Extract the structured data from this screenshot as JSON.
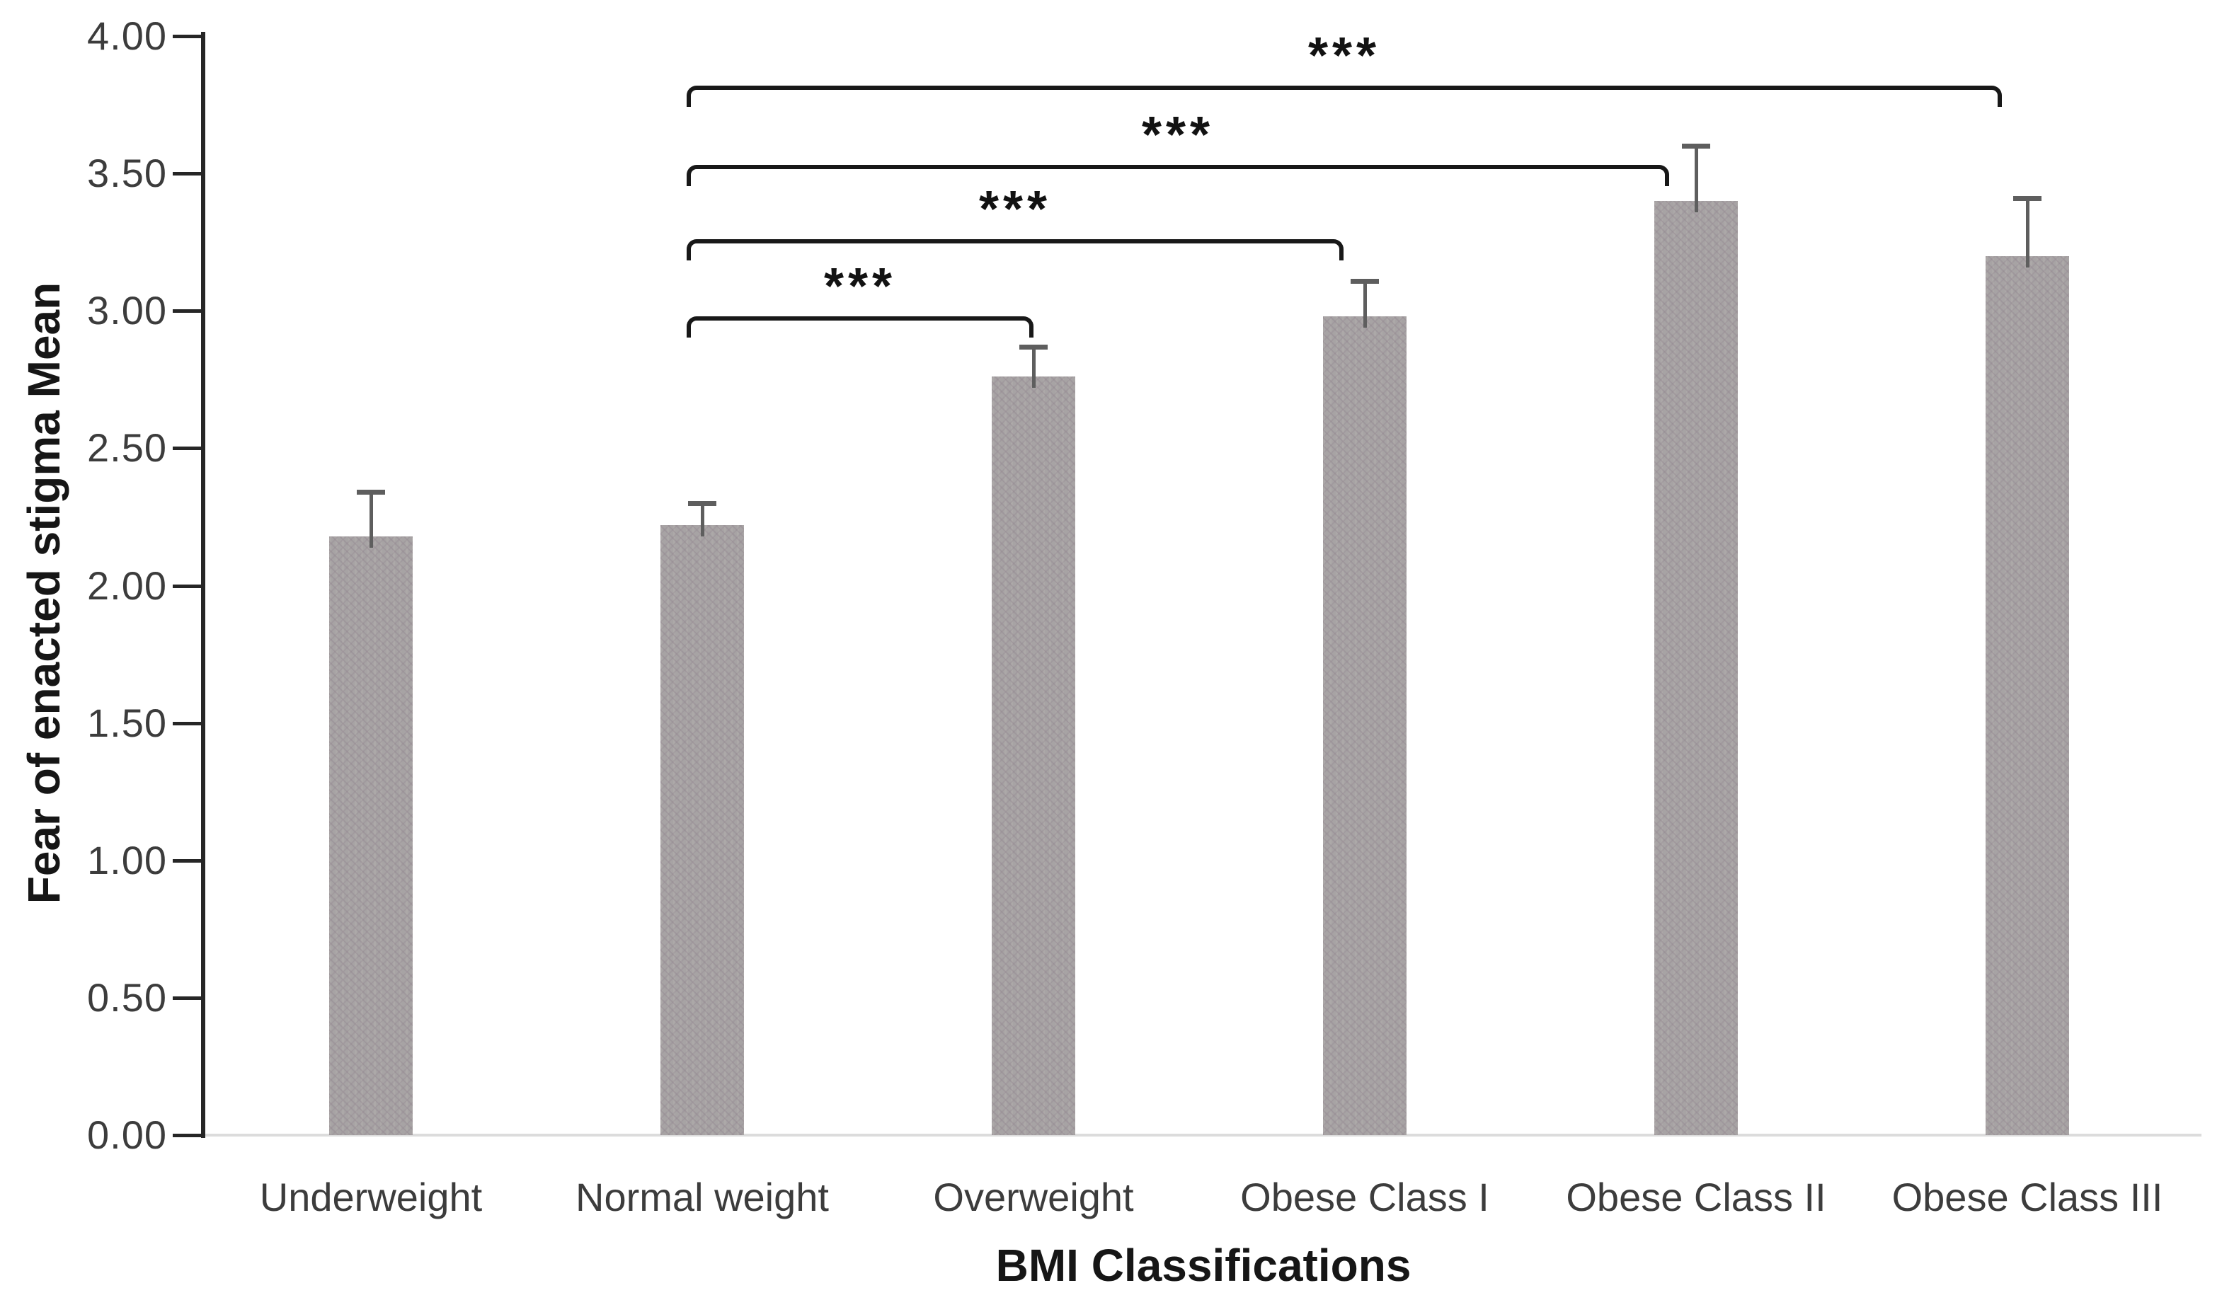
{
  "background": "#ffffff",
  "chart_data": {
    "type": "bar",
    "title": "",
    "xlabel": "BMI Classifications",
    "ylabel": "Fear of enacted stigma Mean",
    "categories": [
      "Underweight",
      "Normal weight",
      "Overweight",
      "Obese Class I",
      "Obese Class II",
      "Obese Class III"
    ],
    "values": [
      2.18,
      2.22,
      2.76,
      2.98,
      3.4,
      3.2
    ],
    "error_plus": [
      0.16,
      0.08,
      0.11,
      0.13,
      0.2,
      0.21
    ],
    "ylim": [
      0,
      4
    ],
    "ytick_step": 0.5,
    "ytick_labels": [
      "0.00",
      "0.50",
      "1.00",
      "1.50",
      "2.00",
      "2.50",
      "3.00",
      "3.50",
      "4.00"
    ],
    "grid": false,
    "legend": "none",
    "bar_color": "#a7a3a4",
    "error_bar_color": "#5e5e5e",
    "axis_color": "#262626",
    "bracket_color": "#181818",
    "significance_brackets": [
      {
        "from": "Normal weight",
        "to": "Overweight",
        "label": "***",
        "y_value": 2.98
      },
      {
        "from": "Normal weight",
        "to": "Obese Class I",
        "label": "***",
        "y_value": 3.26
      },
      {
        "from": "Normal weight",
        "to": "Obese Class II",
        "label": "***",
        "y_value": 3.53
      },
      {
        "from": "Normal weight",
        "to": "Obese Class III",
        "label": "***",
        "y_value": 3.82
      }
    ]
  }
}
